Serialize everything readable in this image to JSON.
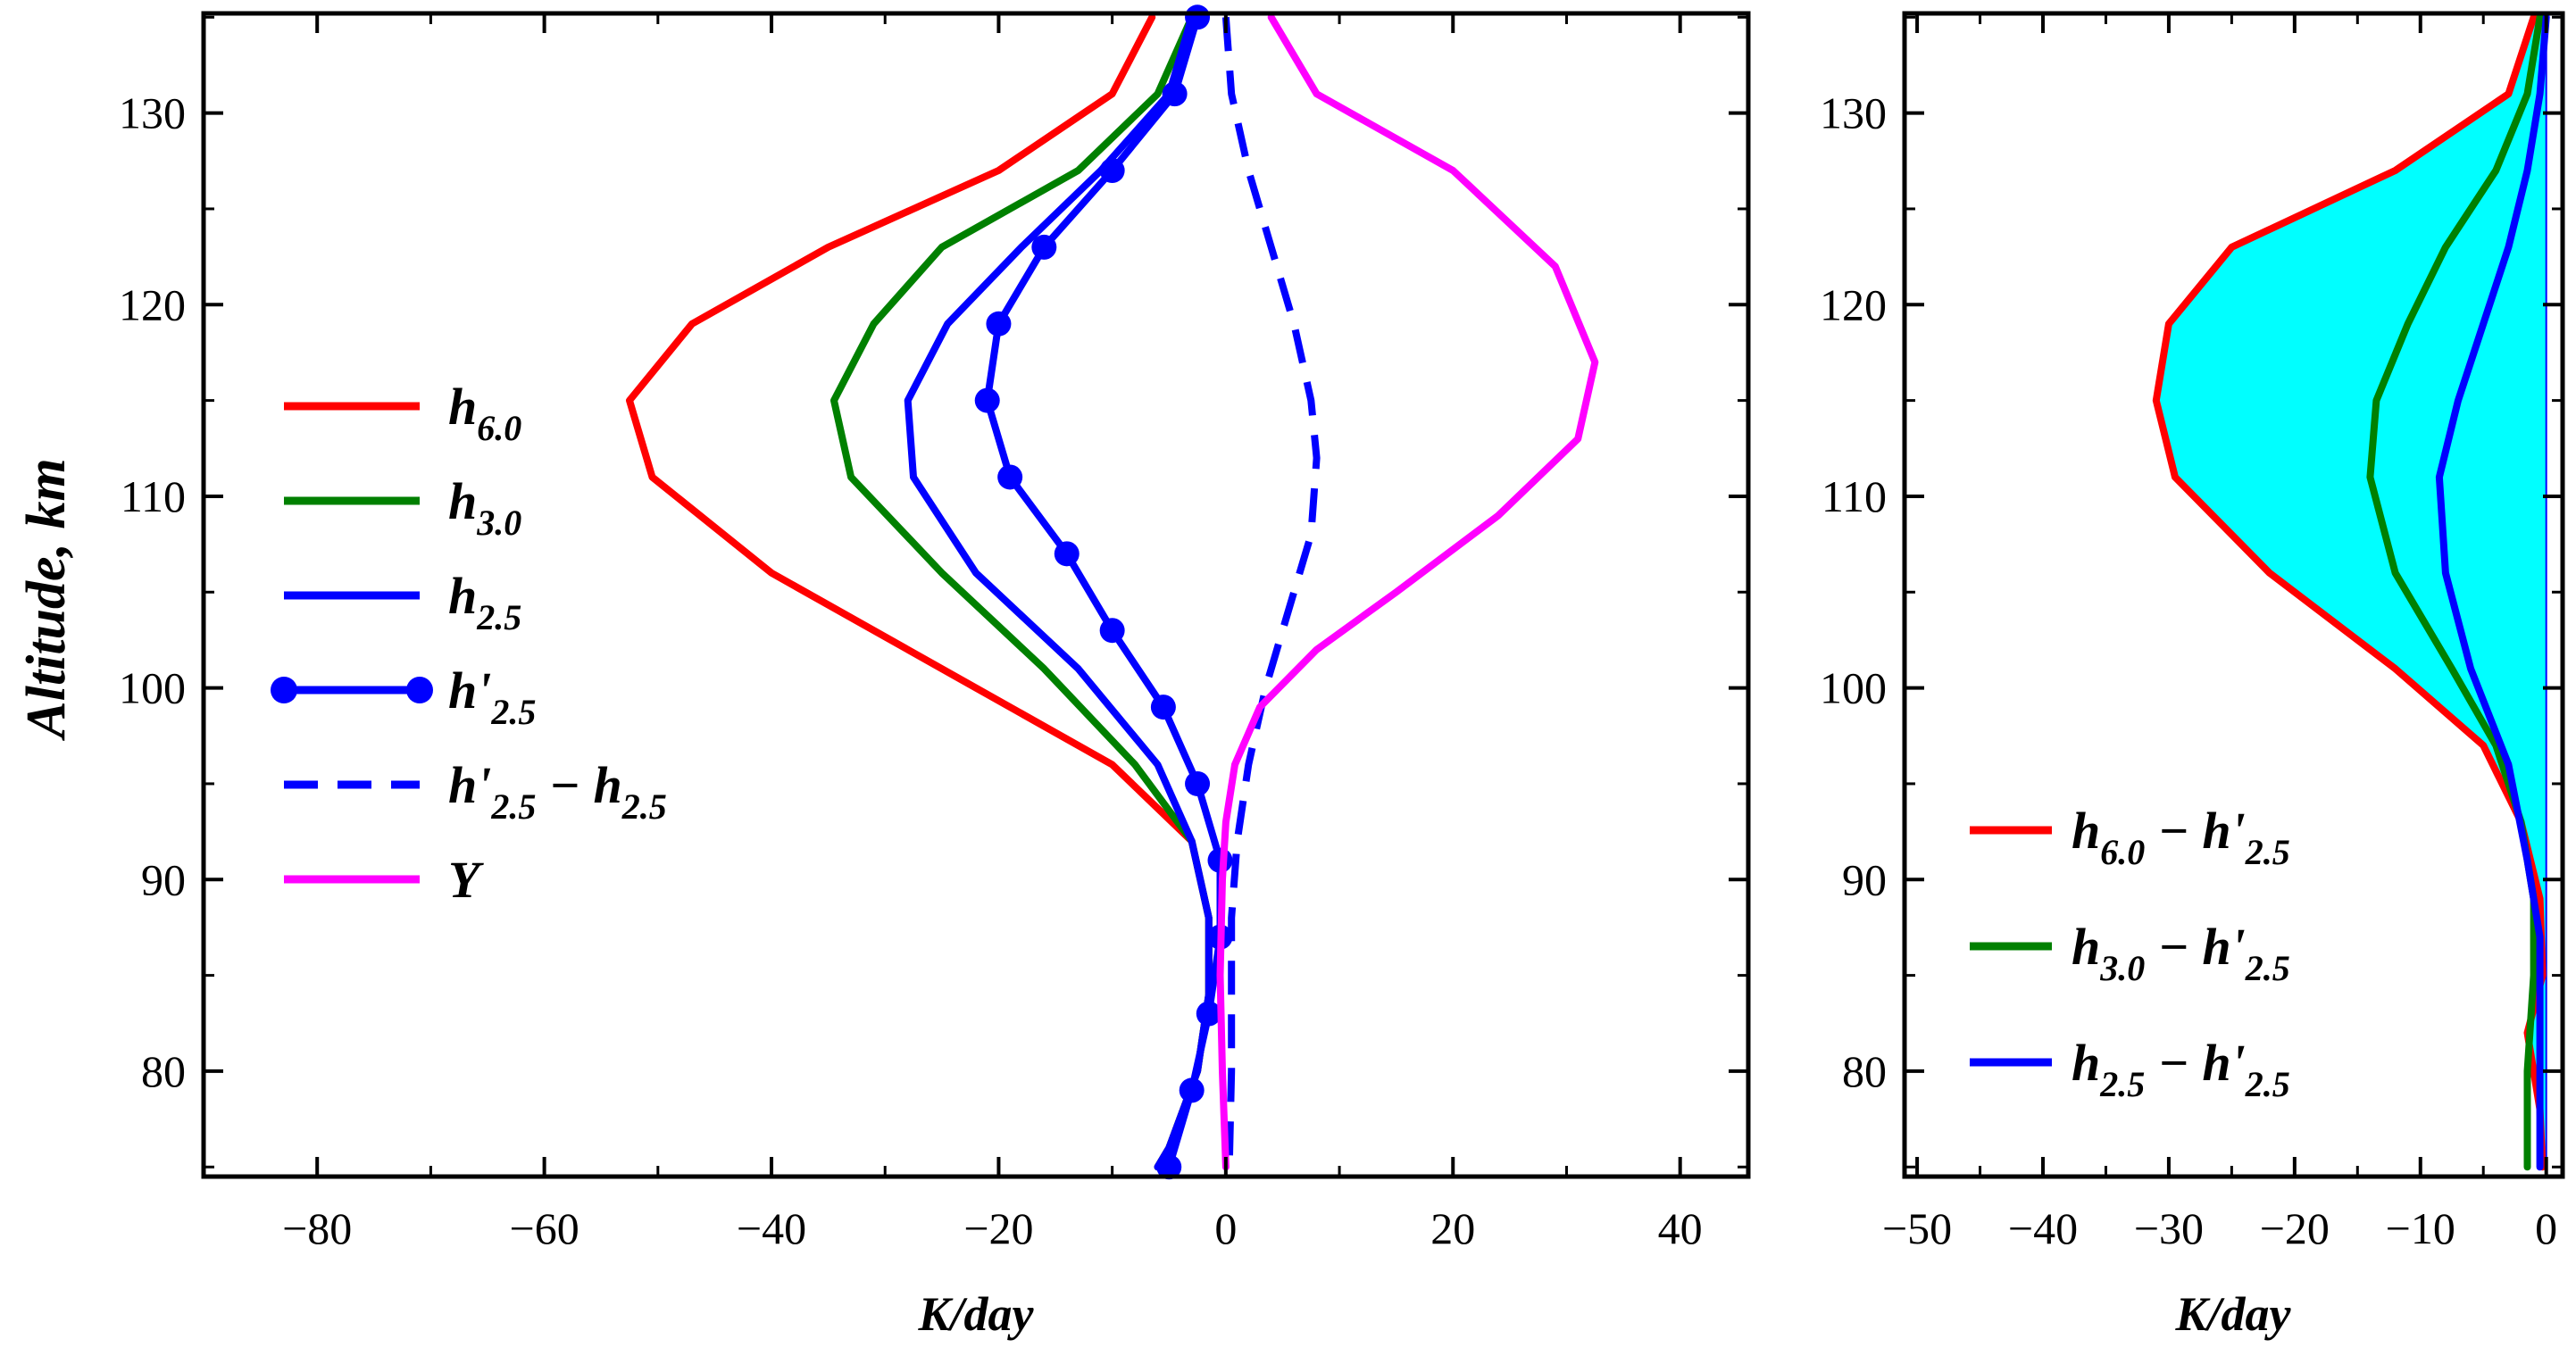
{
  "chart_data": [
    {
      "type": "line",
      "title": "",
      "xlabel": "K/day",
      "ylabel": "Altitude, km",
      "xlim": [
        -90,
        46
      ],
      "ylim": [
        74.5,
        135.2
      ],
      "xticks": [
        -80,
        -60,
        -40,
        -20,
        0,
        20,
        40
      ],
      "xtick_labels": [
        "−80",
        "−60",
        "−40",
        "−20",
        "0",
        "20",
        "40"
      ],
      "yticks": [
        80,
        90,
        100,
        110,
        120,
        130
      ],
      "ytick_labels": [
        "80",
        "90",
        "100",
        "110",
        "120",
        "130"
      ],
      "grid": false,
      "legend_position": "left",
      "series": [
        {
          "name": "h6.0",
          "legend": {
            "main": "h",
            "sub": "6.0",
            "prime": "",
            "minus_main": "",
            "minus_sub": "",
            "minus_prime": ""
          },
          "color": "#ff0000",
          "style": "solid",
          "markers": false,
          "points": [
            [
              -6.5,
              135
            ],
            [
              -10,
              131
            ],
            [
              -20,
              127
            ],
            [
              -35,
              123
            ],
            [
              -47,
              119
            ],
            [
              -52.5,
              115
            ],
            [
              -50.5,
              111
            ],
            [
              -40,
              106
            ],
            [
              -28,
              102
            ],
            [
              -10,
              96
            ],
            [
              -3,
              92
            ],
            [
              -1.5,
              88
            ],
            [
              -1.5,
              84
            ],
            [
              -2.5,
              80
            ],
            [
              -5,
              76
            ],
            [
              -6,
              75
            ]
          ]
        },
        {
          "name": "h3.0",
          "legend": {
            "main": "h",
            "sub": "3.0",
            "prime": "",
            "minus_main": "",
            "minus_sub": "",
            "minus_prime": ""
          },
          "color": "#008000",
          "style": "solid",
          "markers": false,
          "points": [
            [
              -3,
              135
            ],
            [
              -6,
              131
            ],
            [
              -13,
              127
            ],
            [
              -25,
              123
            ],
            [
              -31,
              119
            ],
            [
              -34.5,
              115
            ],
            [
              -33,
              111
            ],
            [
              -25,
              106
            ],
            [
              -16,
              101
            ],
            [
              -8,
              96
            ],
            [
              -3,
              92
            ],
            [
              -1.5,
              88
            ],
            [
              -1.5,
              84
            ],
            [
              -2.5,
              80
            ],
            [
              -5,
              76
            ],
            [
              -6,
              75
            ]
          ]
        },
        {
          "name": "h2.5",
          "legend": {
            "main": "h",
            "sub": "2.5",
            "prime": "",
            "minus_main": "",
            "minus_sub": "",
            "minus_prime": ""
          },
          "color": "#0000ff",
          "style": "solid",
          "markers": false,
          "points": [
            [
              -3,
              135
            ],
            [
              -5,
              131
            ],
            [
              -11,
              127
            ],
            [
              -18,
              123
            ],
            [
              -24.5,
              119
            ],
            [
              -28,
              115
            ],
            [
              -27.5,
              111
            ],
            [
              -22,
              106
            ],
            [
              -13,
              101
            ],
            [
              -6,
              96
            ],
            [
              -3,
              92
            ],
            [
              -1.5,
              88
            ],
            [
              -1.5,
              84
            ],
            [
              -2.5,
              80
            ],
            [
              -5,
              76
            ],
            [
              -6,
              75
            ]
          ]
        },
        {
          "name": "h'2.5",
          "legend": {
            "main": "h",
            "sub": "2.5",
            "prime": "'",
            "minus_main": "",
            "minus_sub": "",
            "minus_prime": ""
          },
          "color": "#0000ff",
          "style": "solid",
          "markers": true,
          "points": [
            [
              -2.5,
              135
            ],
            [
              -4.5,
              131
            ],
            [
              -10,
              127
            ],
            [
              -16,
              123
            ],
            [
              -20,
              119
            ],
            [
              -21,
              115
            ],
            [
              -19,
              111
            ],
            [
              -14,
              107
            ],
            [
              -10,
              103
            ],
            [
              -5.5,
              99
            ],
            [
              -2.5,
              95
            ],
            [
              -0.5,
              91
            ],
            [
              -0.5,
              87
            ],
            [
              -1.5,
              83
            ],
            [
              -3,
              79
            ],
            [
              -5,
              75
            ]
          ]
        },
        {
          "name": "h'2.5 − h2.5",
          "legend": {
            "main": "h",
            "sub": "2.5",
            "prime": "'",
            "minus_main": "h",
            "minus_sub": "2.5",
            "minus_prime": ""
          },
          "color": "#0000ff",
          "style": "dashed",
          "markers": false,
          "points": [
            [
              0,
              135
            ],
            [
              0.5,
              131
            ],
            [
              2,
              127
            ],
            [
              4,
              123
            ],
            [
              6,
              119
            ],
            [
              7.5,
              115
            ],
            [
              8,
              112
            ],
            [
              7.5,
              108
            ],
            [
              5.5,
              104
            ],
            [
              3.5,
              100
            ],
            [
              2,
              96
            ],
            [
              1,
              92
            ],
            [
              0.5,
              88
            ],
            [
              0.5,
              84
            ],
            [
              0.5,
              80
            ],
            [
              0.3,
              75
            ]
          ]
        },
        {
          "name": "Y",
          "legend": {
            "main": "Y",
            "sub": "",
            "prime": "",
            "minus_main": "",
            "minus_sub": "",
            "minus_prime": ""
          },
          "color": "#ff00ff",
          "style": "solid",
          "markers": false,
          "points": [
            [
              4,
              135
            ],
            [
              8,
              131
            ],
            [
              20,
              127
            ],
            [
              29,
              122
            ],
            [
              32.5,
              117
            ],
            [
              31,
              113
            ],
            [
              24,
              109
            ],
            [
              15,
              105
            ],
            [
              8,
              102
            ],
            [
              3,
              99
            ],
            [
              0.8,
              96
            ],
            [
              0,
              93
            ],
            [
              -0.3,
              90
            ],
            [
              -0.5,
              85
            ],
            [
              -0.3,
              80
            ],
            [
              0,
              75
            ]
          ]
        }
      ]
    },
    {
      "type": "area",
      "title": "",
      "xlabel": "K/day",
      "ylabel": "",
      "xlim": [
        -51,
        1.3
      ],
      "ylim": [
        74.5,
        135.2
      ],
      "xticks": [
        -50,
        -40,
        -30,
        -20,
        -10,
        0
      ],
      "xtick_labels": [
        "−50",
        "−40",
        "−30",
        "−20",
        "−10",
        "0"
      ],
      "yticks": [
        80,
        90,
        100,
        110,
        120,
        130
      ],
      "ytick_labels": [
        "80",
        "90",
        "100",
        "110",
        "120",
        "130"
      ],
      "grid": false,
      "legend_position": "lower-left",
      "fill_color": "#00ffff",
      "fill_between": [
        "h6.0 − h'2.5",
        "zero"
      ],
      "series": [
        {
          "name": "h6.0 − h'2.5",
          "legend": {
            "main": "h",
            "sub": "6.0",
            "prime": "",
            "minus_main": "h",
            "minus_sub": "2.5",
            "minus_prime": "'"
          },
          "color": "#ff0000",
          "style": "solid",
          "markers": false,
          "points": [
            [
              -1,
              135
            ],
            [
              -3,
              131
            ],
            [
              -12,
              127
            ],
            [
              -25,
              123
            ],
            [
              -30,
              119
            ],
            [
              -31,
              115
            ],
            [
              -29.5,
              111
            ],
            [
              -22,
              106
            ],
            [
              -12,
              101
            ],
            [
              -5,
              97
            ],
            [
              -2,
              93
            ],
            [
              -0.5,
              89
            ],
            [
              -0.3,
              85
            ],
            [
              -1.5,
              82
            ],
            [
              -0.5,
              78
            ],
            [
              -0.3,
              75
            ]
          ]
        },
        {
          "name": "h3.0 − h'2.5",
          "legend": {
            "main": "h",
            "sub": "3.0",
            "prime": "",
            "minus_main": "h",
            "minus_sub": "2.5",
            "minus_prime": "'"
          },
          "color": "#008000",
          "style": "solid",
          "markers": false,
          "points": [
            [
              -0.5,
              135
            ],
            [
              -1.5,
              131
            ],
            [
              -4,
              127
            ],
            [
              -8,
              123
            ],
            [
              -11,
              119
            ],
            [
              -13.5,
              115
            ],
            [
              -14,
              111
            ],
            [
              -12,
              106
            ],
            [
              -7.5,
              101
            ],
            [
              -4,
              97
            ],
            [
              -2,
              93
            ],
            [
              -1,
              89
            ],
            [
              -1,
              85
            ],
            [
              -1.5,
              80
            ],
            [
              -1.5,
              75
            ]
          ]
        },
        {
          "name": "h2.5 − h'2.5",
          "legend": {
            "main": "h",
            "sub": "2.5",
            "prime": "",
            "minus_main": "h",
            "minus_sub": "2.5",
            "minus_prime": "'"
          },
          "color": "#0000ff",
          "style": "solid",
          "markers": false,
          "points": [
            [
              0,
              135
            ],
            [
              -0.5,
              131
            ],
            [
              -1.5,
              127
            ],
            [
              -3,
              123
            ],
            [
              -5,
              119
            ],
            [
              -7,
              115
            ],
            [
              -8.5,
              111
            ],
            [
              -8,
              106
            ],
            [
              -6,
              101
            ],
            [
              -3,
              96
            ],
            [
              -1.5,
              91
            ],
            [
              -0.5,
              87
            ],
            [
              -0.5,
              83
            ],
            [
              -0.5,
              79
            ],
            [
              -0.5,
              75
            ]
          ]
        }
      ]
    }
  ]
}
